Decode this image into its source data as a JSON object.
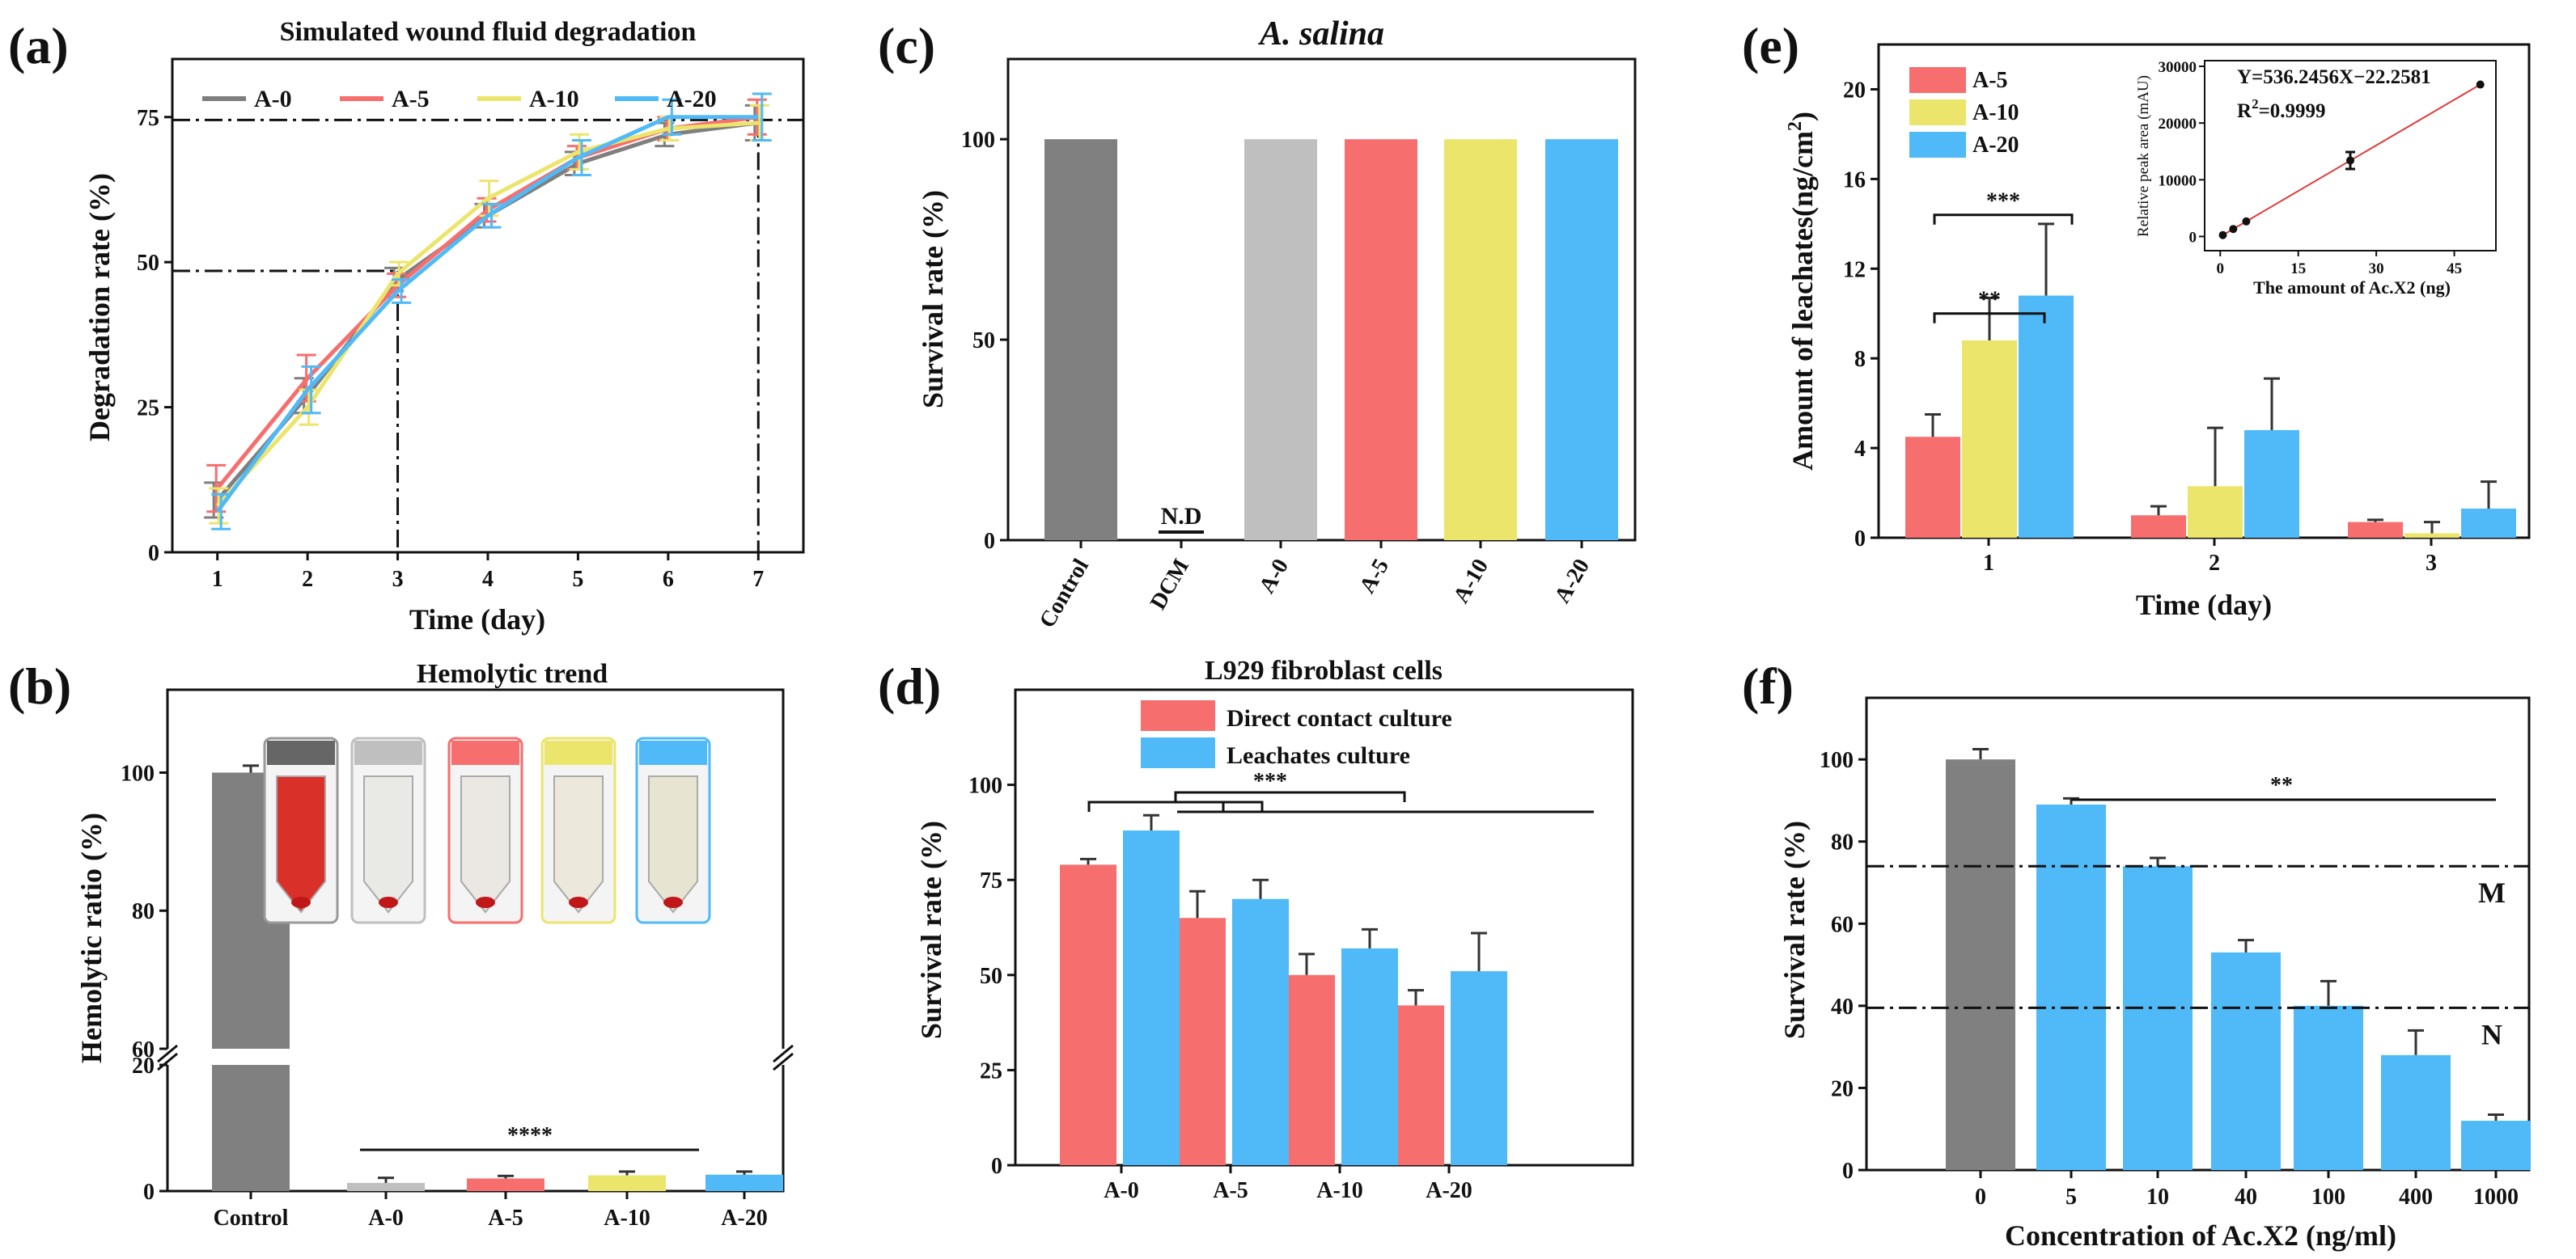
{
  "colors": {
    "control": "#808080",
    "A-0": "#bfbfbf",
    "A-5": "#f76e6e",
    "A-10": "#ece56c",
    "A-20": "#4fbaf7",
    "degr_A-0": "#7f7f7f",
    "axis": "#111111"
  },
  "panel_letters": {
    "a": "(a)",
    "b": "(b)",
    "c": "(c)",
    "d": "(d)",
    "e": "(e)",
    "f": "(f)"
  },
  "chart_data": [
    {
      "id": "a",
      "type": "line",
      "title": "Simulated wound fluid degradation",
      "xlabel": "Time (day)",
      "ylabel": "Degradation rate (%)",
      "x": [
        1,
        2,
        3,
        4,
        5,
        6,
        7
      ],
      "xlim": [
        0.5,
        7.5
      ],
      "ylim": [
        0,
        85
      ],
      "yticks": [
        0,
        25,
        50,
        75
      ],
      "series": [
        {
          "name": "A-0",
          "values": [
            9,
            27,
            47,
            58,
            67,
            72,
            74
          ],
          "err": [
            3,
            3,
            2,
            2,
            2,
            2,
            3
          ]
        },
        {
          "name": "A-5",
          "values": [
            11,
            30,
            46,
            59,
            68,
            73,
            75
          ],
          "err": [
            4,
            4,
            2,
            2,
            2,
            2,
            3
          ]
        },
        {
          "name": "A-10",
          "values": [
            8,
            25,
            48,
            61,
            69,
            73,
            74
          ],
          "err": [
            3,
            3,
            2,
            3,
            3,
            2,
            3
          ]
        },
        {
          "name": "A-20",
          "values": [
            7,
            28,
            45,
            58,
            68,
            75,
            75
          ],
          "err": [
            3,
            4,
            2,
            2,
            3,
            3,
            4
          ]
        }
      ],
      "reference_lines": {
        "y": [
          48.5,
          74.5
        ],
        "x": [
          3,
          7
        ]
      }
    },
    {
      "id": "b",
      "type": "bar",
      "title": "Hemolytic trend",
      "ylabel": "Hemolytic ratio (%)",
      "categories": [
        "Control",
        "A-0",
        "A-5",
        "A-10",
        "A-20"
      ],
      "values": [
        100,
        1.3,
        2.0,
        2.5,
        2.6
      ],
      "err": [
        1.0,
        0.8,
        0.4,
        0.6,
        0.5
      ],
      "axis_break": {
        "lower": [
          0,
          20
        ],
        "upper": [
          60,
          112
        ]
      },
      "yticks": [
        0,
        20,
        60,
        80,
        100
      ],
      "significance": "****"
    },
    {
      "id": "c",
      "type": "bar",
      "title": "A. salina",
      "ylabel": "Survival rate (%)",
      "categories": [
        "Control",
        "DCM",
        "A-0",
        "A-5",
        "A-10",
        "A-20"
      ],
      "values": [
        100,
        0,
        100,
        100,
        100,
        100
      ],
      "ylim": [
        0,
        120
      ],
      "yticks": [
        0,
        50,
        100
      ],
      "annotation": "N.D"
    },
    {
      "id": "d",
      "type": "bar",
      "title": "L929 fibroblast cells",
      "ylabel": "Survival rate (%)",
      "categories": [
        "A-0",
        "A-5",
        "A-10",
        "A-20"
      ],
      "ylim": [
        0,
        125
      ],
      "yticks": [
        0,
        25,
        50,
        75,
        100
      ],
      "series": [
        {
          "name": "Direct contact culture",
          "values": [
            79,
            65,
            50,
            42
          ],
          "err": [
            1.5,
            7,
            5.5,
            4
          ]
        },
        {
          "name": "Leachates culture",
          "values": [
            88,
            70,
            57,
            51
          ],
          "err": [
            4,
            5,
            5,
            10
          ]
        }
      ],
      "significance": "***"
    },
    {
      "id": "e",
      "type": "bar",
      "xlabel": "Time (day)",
      "ylabel": "Amount of leachates(ng/cm",
      "ylabel_sup": "2",
      "ylabel_end": ")",
      "categories": [
        "1",
        "2",
        "3"
      ],
      "ylim": [
        0,
        22
      ],
      "yticks": [
        0,
        4,
        8,
        12,
        16,
        20
      ],
      "series": [
        {
          "name": "A-5",
          "values": [
            4.5,
            1.0,
            0.7
          ],
          "err": [
            1.0,
            0.4,
            0.1
          ]
        },
        {
          "name": "A-10",
          "values": [
            8.8,
            2.3,
            0.2
          ],
          "err": [
            1.9,
            2.6,
            0.5
          ]
        },
        {
          "name": "A-20",
          "values": [
            10.8,
            4.8,
            1.3
          ],
          "err": [
            3.2,
            2.3,
            1.2
          ]
        }
      ],
      "significance": [
        "**",
        "***"
      ],
      "inset": {
        "type": "scatter",
        "xlabel": "The amount of Ac.X2 (ng)",
        "ylabel": "Relative peak area (mAU)",
        "equation": "Y=536.2456X−22.2581",
        "r2_label": "R",
        "r2_sup": "2",
        "r2_value": "=0.9999",
        "x": [
          0.5,
          2.5,
          5,
          25,
          50
        ],
        "y": [
          250,
          1320,
          2660,
          13400,
          26790
        ],
        "err": [
          0,
          0,
          0,
          1500,
          0
        ],
        "xlim": [
          -3,
          53
        ],
        "ylim": [
          -2500,
          31000
        ],
        "xticks": [
          0,
          15,
          30,
          45
        ],
        "yticks": [
          0,
          10000,
          20000,
          30000
        ]
      }
    },
    {
      "id": "f",
      "type": "bar",
      "xlabel": "Concentration of Ac.X2 (ng/ml)",
      "ylabel": "Survival rate (%)",
      "categories": [
        "0",
        "5",
        "10",
        "40",
        "100",
        "400",
        "1000"
      ],
      "values": [
        100,
        89,
        74,
        53,
        40,
        28,
        12
      ],
      "err": [
        2.5,
        1.5,
        2,
        3,
        6,
        6,
        1.5
      ],
      "ylim": [
        0,
        115
      ],
      "yticks": [
        0,
        20,
        40,
        60,
        80,
        100
      ],
      "reference_lines": [
        {
          "label": "M",
          "y": 74
        },
        {
          "label": "N",
          "y": 39.5
        }
      ],
      "significance": "**"
    }
  ]
}
